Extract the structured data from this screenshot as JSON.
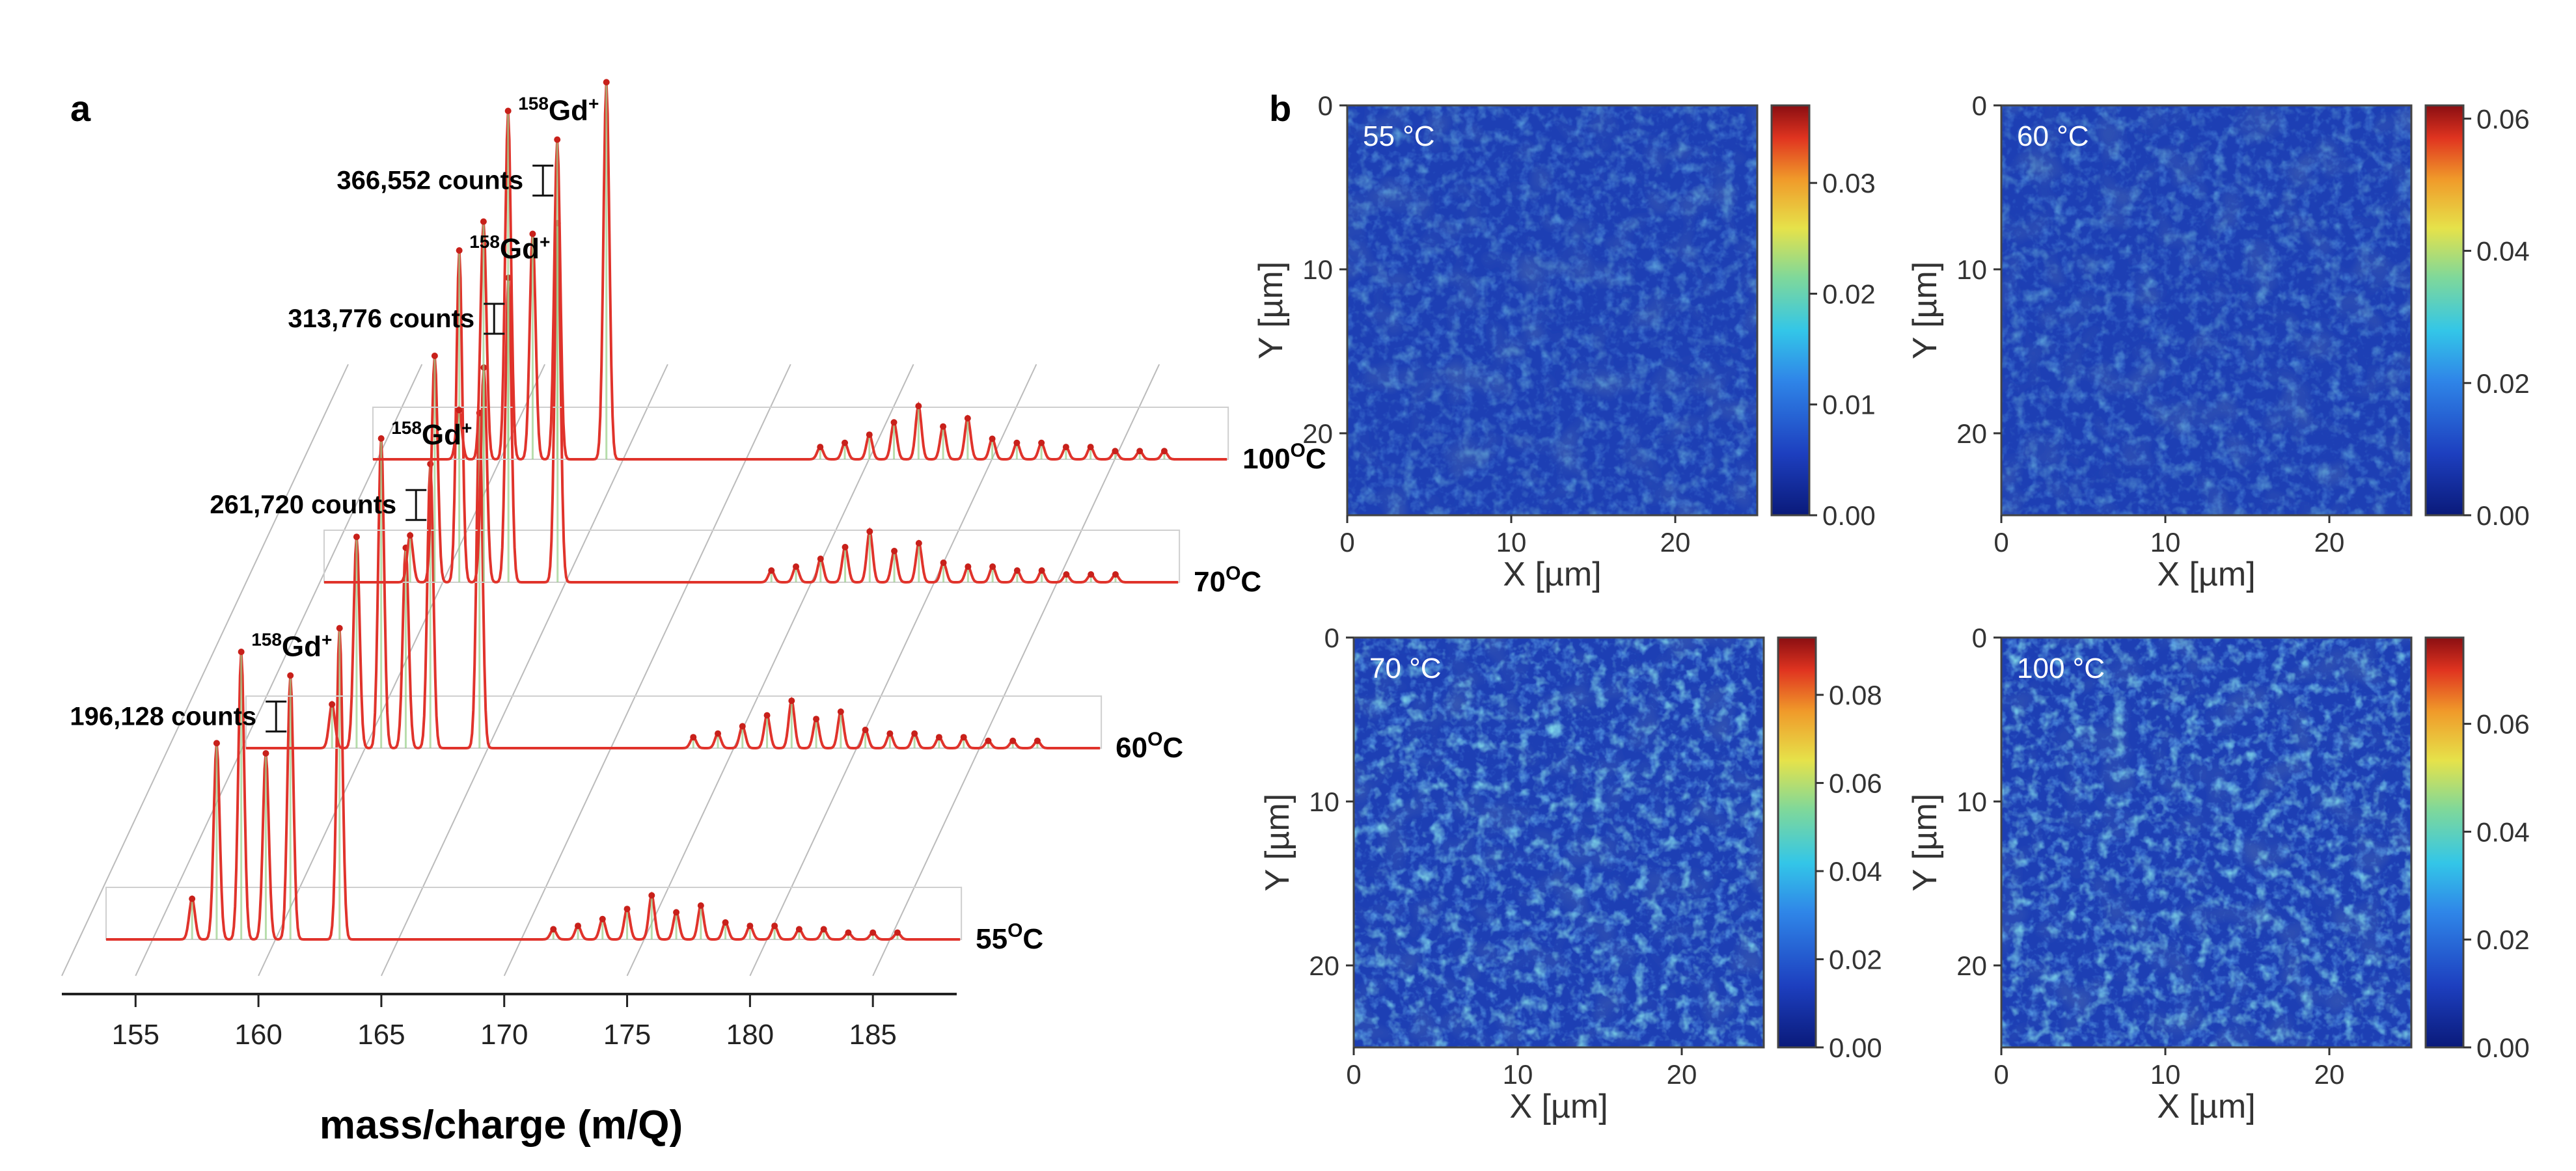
{
  "panel_a": {
    "label": "a",
    "xlabel": "mass/charge (m/Q)",
    "ticks": [
      "155",
      "160",
      "165",
      "170",
      "175",
      "180",
      "185"
    ],
    "peak_label_sup": "158",
    "peak_label_main": "Gd",
    "peak_label_charge": "+",
    "degree_sup": "O",
    "temp_unit": "C",
    "traces": [
      {
        "temp": "55",
        "counts": "196,128 counts"
      },
      {
        "temp": "60",
        "counts": "261,720 counts"
      },
      {
        "temp": "70",
        "counts": "313,776 counts"
      },
      {
        "temp": "100",
        "counts": "366,552 counts"
      }
    ]
  },
  "panel_b": {
    "label": "b",
    "xlabel": "X [µm]",
    "ylabel": "Y [µm]",
    "axis_ticks": [
      "0",
      "10",
      "20"
    ],
    "maps": [
      {
        "title": "55 °C",
        "cbar": [
          "0.00",
          "0.01",
          "0.02",
          "0.03"
        ]
      },
      {
        "title": "60 °C",
        "cbar": [
          "0.00",
          "0.02",
          "0.04",
          "0.06"
        ]
      },
      {
        "title": "70 °C",
        "cbar": [
          "0.00",
          "0.02",
          "0.04",
          "0.06",
          "0.08"
        ]
      },
      {
        "title": "100 °C",
        "cbar": [
          "0.00",
          "0.02",
          "0.04",
          "0.06"
        ]
      }
    ]
  },
  "chart_data": [
    {
      "type": "line",
      "title": "",
      "xlabel": "mass/charge (m/Q)",
      "ylabel": "",
      "xlim": [
        152,
        190
      ],
      "x_ticks": [
        155,
        160,
        165,
        170,
        175,
        180,
        185
      ],
      "series_names": [
        "55°C",
        "60°C",
        "70°C",
        "100°C"
      ],
      "peak_masses": [
        157.3,
        158.3,
        159.3,
        160.3,
        161.3,
        163.3,
        172.0,
        173.0,
        174.0,
        175.0,
        176.0,
        177.0,
        178.0,
        179.0,
        180.0,
        181.0,
        182.0,
        183.0,
        184.0,
        185.0,
        186.0
      ],
      "relative_heights": [
        0.12,
        0.58,
        0.85,
        0.55,
        0.78,
        0.92,
        0.03,
        0.04,
        0.06,
        0.09,
        0.13,
        0.08,
        0.1,
        0.05,
        0.04,
        0.04,
        0.03,
        0.03,
        0.02,
        0.02,
        0.02
      ],
      "gd158_counts": [
        196128,
        261720,
        313776,
        366552
      ],
      "annotation": "158Gd+"
    },
    {
      "type": "heatmap",
      "title": "55 °C / 60 °C / 70 °C / 100 °C",
      "xlabel": "X [µm]",
      "ylabel": "Y [µm]",
      "xlim": [
        0,
        25
      ],
      "ylim": [
        25,
        0
      ],
      "colorbar_ranges": [
        [
          0,
          0.037
        ],
        [
          0,
          0.062
        ],
        [
          0,
          0.093
        ],
        [
          0,
          0.076
        ]
      ]
    }
  ]
}
